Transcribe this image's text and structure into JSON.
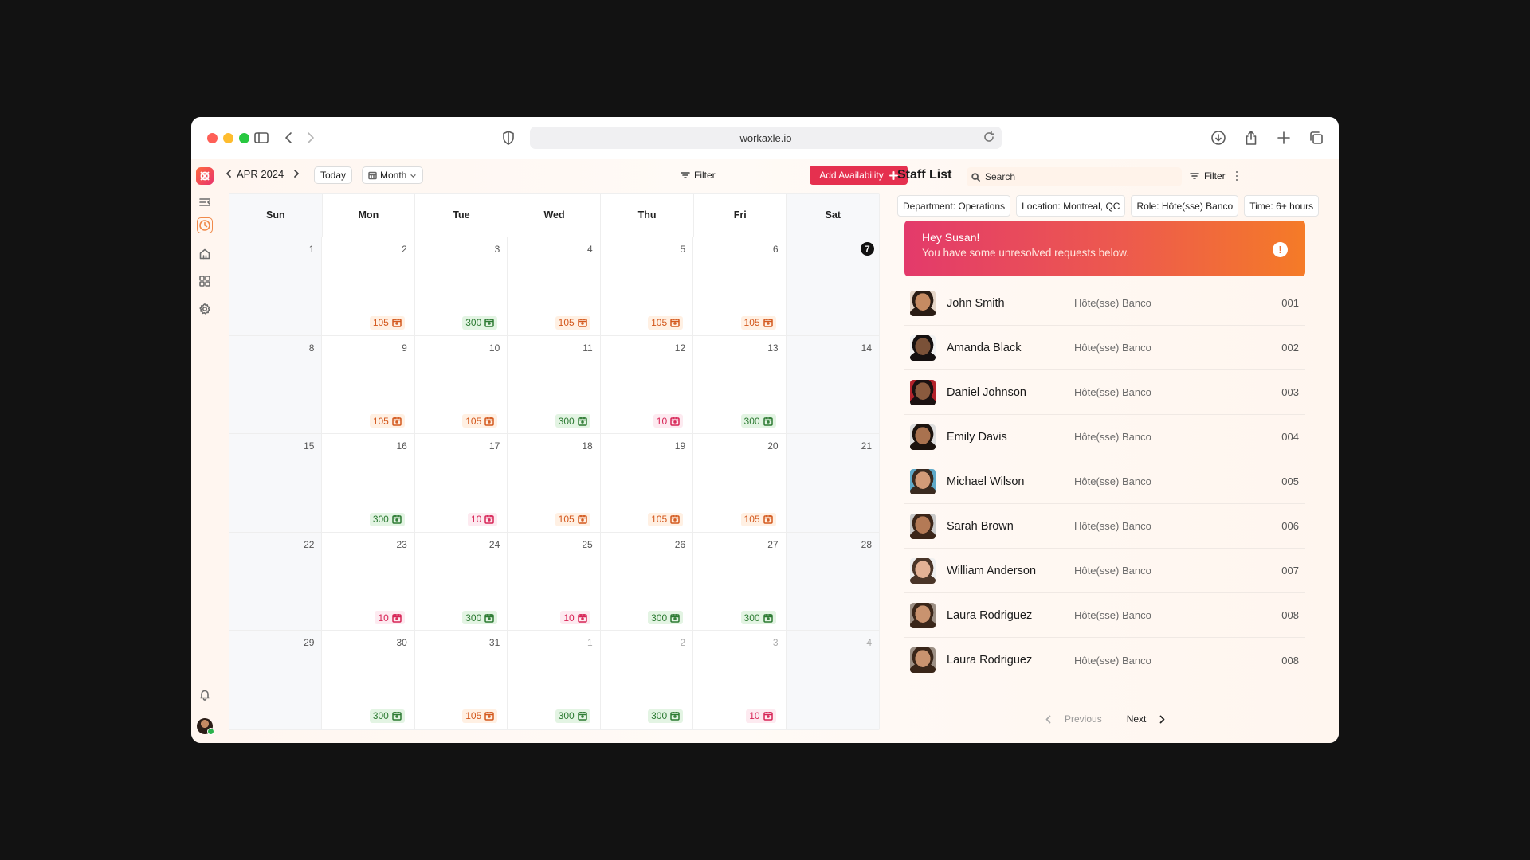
{
  "browser": {
    "url": "workaxle.io"
  },
  "calendar": {
    "month_label": "APR 2024",
    "today_label": "Today",
    "view_label": "Month",
    "filter_label": "Filter",
    "add_label": "Add Availability",
    "weekdays": [
      "Sun",
      "Mon",
      "Tue",
      "Wed",
      "Thu",
      "Fri",
      "Sat"
    ],
    "weeks": [
      [
        {
          "day": "1"
        },
        {
          "day": "2",
          "badge": "105",
          "tone": "orange"
        },
        {
          "day": "3",
          "badge": "300",
          "tone": "green"
        },
        {
          "day": "4",
          "badge": "105",
          "tone": "orange"
        },
        {
          "day": "5",
          "badge": "105",
          "tone": "orange"
        },
        {
          "day": "6",
          "badge": "105",
          "tone": "orange"
        },
        {
          "day": "7",
          "today": true
        }
      ],
      [
        {
          "day": "8"
        },
        {
          "day": "9",
          "badge": "105",
          "tone": "orange"
        },
        {
          "day": "10",
          "badge": "105",
          "tone": "orange"
        },
        {
          "day": "11",
          "badge": "300",
          "tone": "green"
        },
        {
          "day": "12",
          "badge": "10",
          "tone": "pink"
        },
        {
          "day": "13",
          "badge": "300",
          "tone": "green"
        },
        {
          "day": "14"
        }
      ],
      [
        {
          "day": "15"
        },
        {
          "day": "16",
          "badge": "300",
          "tone": "green"
        },
        {
          "day": "17",
          "badge": "10",
          "tone": "pink"
        },
        {
          "day": "18",
          "badge": "105",
          "tone": "orange"
        },
        {
          "day": "19",
          "badge": "105",
          "tone": "orange"
        },
        {
          "day": "20",
          "badge": "105",
          "tone": "orange"
        },
        {
          "day": "21"
        }
      ],
      [
        {
          "day": "22"
        },
        {
          "day": "23",
          "badge": "10",
          "tone": "pink"
        },
        {
          "day": "24",
          "badge": "300",
          "tone": "green"
        },
        {
          "day": "25",
          "badge": "10",
          "tone": "pink"
        },
        {
          "day": "26",
          "badge": "300",
          "tone": "green"
        },
        {
          "day": "27",
          "badge": "300",
          "tone": "green"
        },
        {
          "day": "28"
        }
      ],
      [
        {
          "day": "29"
        },
        {
          "day": "30",
          "badge": "300",
          "tone": "green"
        },
        {
          "day": "31",
          "badge": "105",
          "tone": "orange"
        },
        {
          "day": "1",
          "muted": true,
          "badge": "300",
          "tone": "green"
        },
        {
          "day": "2",
          "muted": true,
          "badge": "300",
          "tone": "green"
        },
        {
          "day": "3",
          "muted": true,
          "badge": "10",
          "tone": "pink"
        },
        {
          "day": "4",
          "muted": true
        }
      ]
    ]
  },
  "staff": {
    "title": "Staff List",
    "search_placeholder": "Search",
    "filter_label": "Filter",
    "chips": [
      "Department: Operations",
      "Location: Montreal, QC",
      "Role: Hôte(sse) Banco",
      "Time: 6+ hours"
    ],
    "alert": {
      "title": "Hey Susan!",
      "message": "You have some unresolved requests below.",
      "icon_glyph": "!"
    },
    "members": [
      {
        "name": "John Smith",
        "role": "Hôte(sse) Banco",
        "id": "001",
        "skin": "#c68b62",
        "hair": "#2a1c14",
        "bg": "#e6d6c8"
      },
      {
        "name": "Amanda Black",
        "role": "Hôte(sse) Banco",
        "id": "002",
        "skin": "#7a5138",
        "hair": "#151010",
        "bg": "#f1f1f1"
      },
      {
        "name": "Daniel Johnson",
        "role": "Hôte(sse) Banco",
        "id": "003",
        "skin": "#8a5a3e",
        "hair": "#1b1111",
        "bg": "#b3222b"
      },
      {
        "name": "Emily Davis",
        "role": "Hôte(sse) Banco",
        "id": "004",
        "skin": "#a9724f",
        "hair": "#1c130e",
        "bg": "#dedede"
      },
      {
        "name": "Michael Wilson",
        "role": "Hôte(sse) Banco",
        "id": "005",
        "skin": "#d39b78",
        "hair": "#3a2a20",
        "bg": "#5ea9c9"
      },
      {
        "name": "Sarah Brown",
        "role": "Hôte(sse) Banco",
        "id": "006",
        "skin": "#b47a56",
        "hair": "#3b2518",
        "bg": "#c9c9c9"
      },
      {
        "name": "William Anderson",
        "role": "Hôte(sse) Banco",
        "id": "007",
        "skin": "#e2b195",
        "hair": "#4a3528",
        "bg": "#efefef"
      },
      {
        "name": "Laura Rodriguez",
        "role": "Hôte(sse) Banco",
        "id": "008",
        "skin": "#c9936f",
        "hair": "#3a2619",
        "bg": "#9c8f84"
      },
      {
        "name": "Laura Rodriguez",
        "role": "Hôte(sse) Banco",
        "id": "008",
        "skin": "#c9936f",
        "hair": "#3a2619",
        "bg": "#9c8f84"
      }
    ],
    "pager": {
      "prev_label": "Previous",
      "next_label": "Next"
    }
  },
  "colors": {
    "accent": "#e5304f",
    "badge_orange": "#d3581d",
    "badge_green": "#2c7a32",
    "badge_pink": "#d72456"
  },
  "icons": {
    "sidebar": [
      "app-logo-icon",
      "collapse-menu-icon",
      "clock-icon",
      "home-icon",
      "apps-grid-icon",
      "settings-icon",
      "bell-icon"
    ],
    "badge": "calendar-user-icon"
  }
}
